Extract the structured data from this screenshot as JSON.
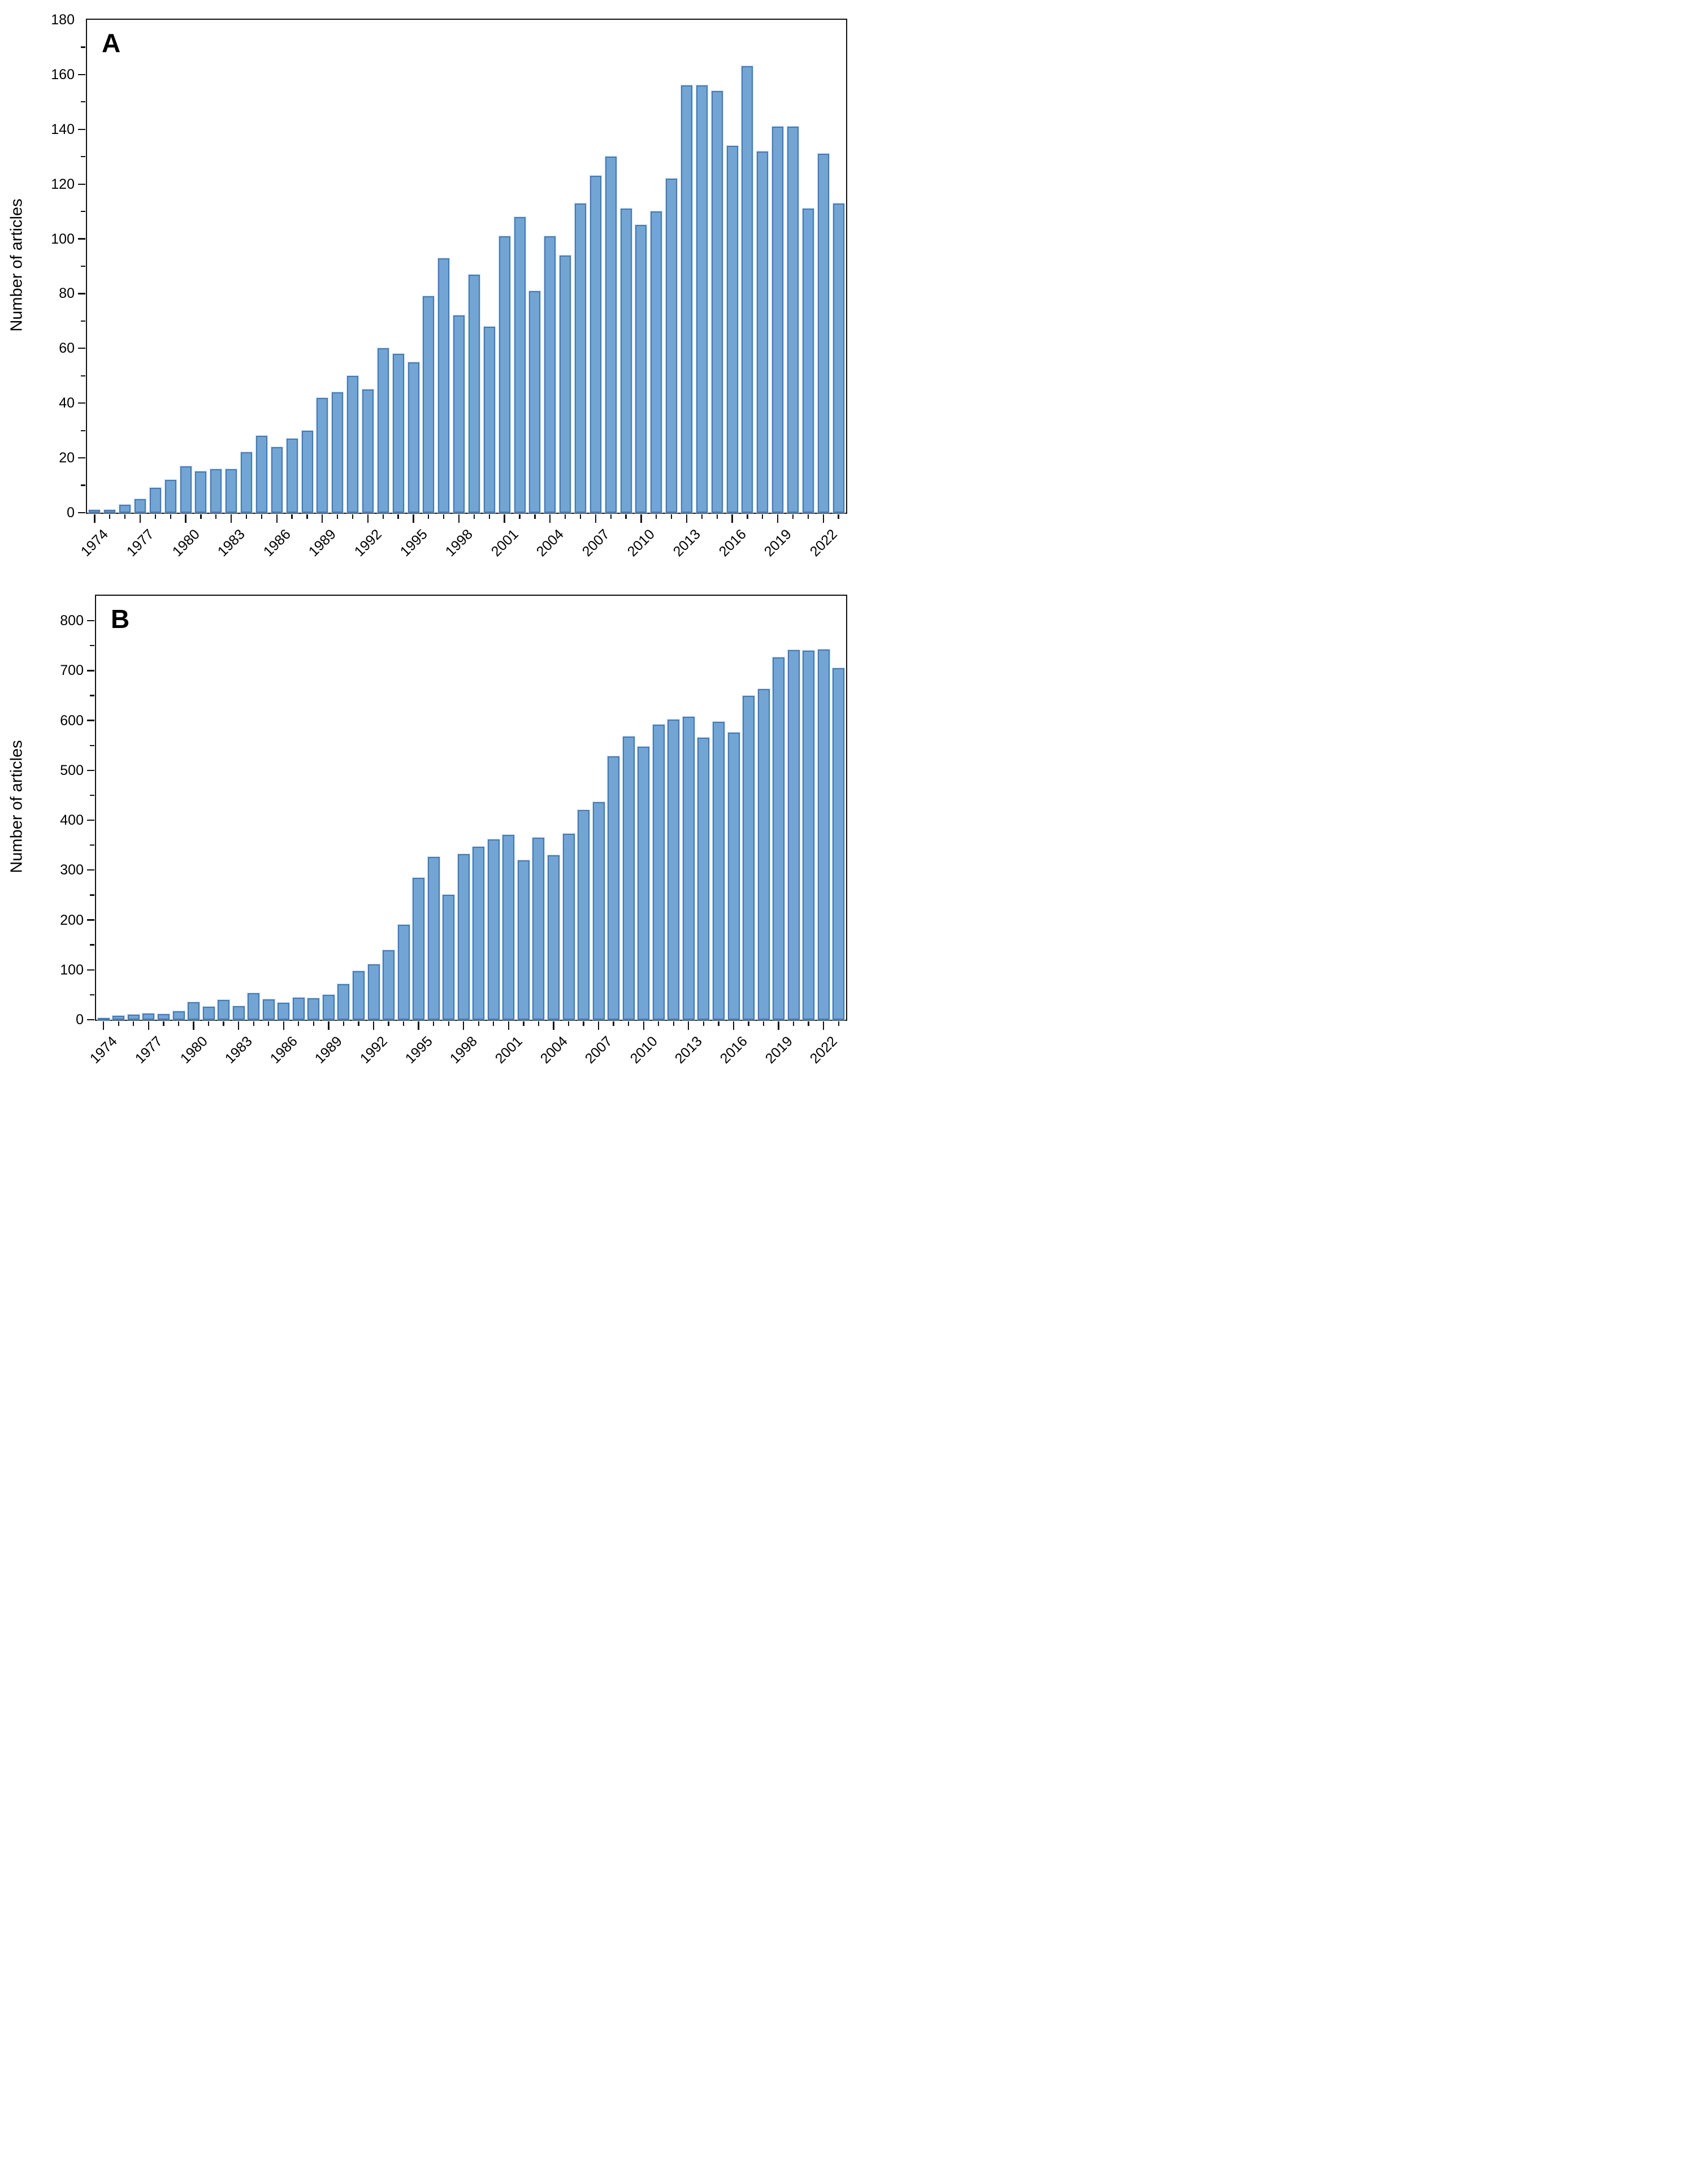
{
  "figure": {
    "background": "#ffffff",
    "axis_color": "#111111"
  },
  "chart_data": [
    {
      "type": "bar",
      "panel": "A",
      "title": "",
      "xlabel": "",
      "ylabel": "Number of articles",
      "ylim": [
        0,
        180
      ],
      "ytick_step": 20,
      "yminor_step": 10,
      "grid": false,
      "legend": "none",
      "bar_fill": "#73a5d4",
      "bar_border": "#4478b0",
      "xtick_label_interval": 3,
      "xtick_labels": [
        "1974",
        "1977",
        "1980",
        "1983",
        "1986",
        "1989",
        "1992",
        "1995",
        "1998",
        "2001",
        "2004",
        "2007",
        "2010",
        "2013",
        "2016",
        "2019",
        "2022"
      ],
      "years": [
        1974,
        1975,
        1976,
        1977,
        1978,
        1979,
        1980,
        1981,
        1982,
        1983,
        1984,
        1985,
        1986,
        1987,
        1988,
        1989,
        1990,
        1991,
        1992,
        1993,
        1994,
        1995,
        1996,
        1997,
        1998,
        1999,
        2000,
        2001,
        2002,
        2003,
        2004,
        2005,
        2006,
        2007,
        2008,
        2009,
        2010,
        2011,
        2012,
        2013,
        2014,
        2015,
        2016,
        2017,
        2018,
        2019,
        2020,
        2021,
        2022,
        2023
      ],
      "values": [
        1,
        1,
        3,
        5,
        9,
        12,
        17,
        15,
        16,
        16,
        22,
        28,
        24,
        27,
        30,
        42,
        44,
        50,
        45,
        60,
        58,
        55,
        79,
        93,
        72,
        87,
        68,
        101,
        108,
        81,
        101,
        94,
        113,
        123,
        130,
        111,
        105,
        110,
        122,
        156,
        156,
        154,
        134,
        163,
        132,
        141,
        141,
        111,
        131,
        113
      ]
    },
    {
      "type": "bar",
      "panel": "B",
      "title": "",
      "xlabel": "",
      "ylabel": "Number of articles",
      "ylim": [
        0,
        850
      ],
      "ytick_step": 100,
      "yminor_step": 50,
      "grid": false,
      "legend": "none",
      "bar_fill": "#73a5d4",
      "bar_border": "#4478b0",
      "xtick_label_interval": 3,
      "xtick_labels": [
        "1974",
        "1977",
        "1980",
        "1983",
        "1986",
        "1989",
        "1992",
        "1995",
        "1998",
        "2001",
        "2004",
        "2007",
        "2010",
        "2013",
        "2016",
        "2019",
        "2022"
      ],
      "years": [
        1974,
        1975,
        1976,
        1977,
        1978,
        1979,
        1980,
        1981,
        1982,
        1983,
        1984,
        1985,
        1986,
        1987,
        1988,
        1989,
        1990,
        1991,
        1992,
        1993,
        1994,
        1995,
        1996,
        1997,
        1998,
        1999,
        2000,
        2001,
        2002,
        2003,
        2004,
        2005,
        2006,
        2007,
        2008,
        2009,
        2010,
        2011,
        2012,
        2013,
        2014,
        2015,
        2016,
        2017,
        2018,
        2019,
        2020,
        2021,
        2022,
        2023
      ],
      "values": [
        3,
        8,
        10,
        12,
        11,
        17,
        35,
        26,
        40,
        27,
        53,
        41,
        34,
        44,
        43,
        50,
        71,
        98,
        111,
        139,
        190,
        285,
        326,
        251,
        332,
        347,
        362,
        371,
        320,
        365,
        330,
        373,
        420,
        436,
        528,
        568,
        548,
        592,
        602,
        607,
        566,
        597,
        576,
        649,
        663,
        727,
        741,
        740,
        742,
        705
      ]
    }
  ]
}
